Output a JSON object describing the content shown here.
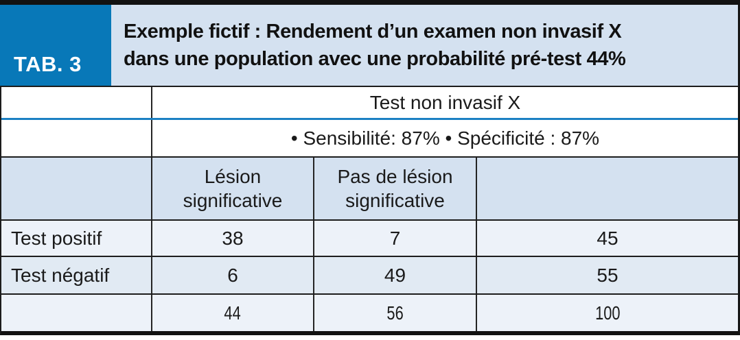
{
  "header": {
    "tab_label": "TAB. 3",
    "title_line1": "Exemple fictif : Rendement d’un examen non invasif X",
    "title_line2": "dans une population avec une probabilité pré-test 44%"
  },
  "table": {
    "span_header": "Test non invasif X",
    "metrics_line": "• Sensibilité: 87% • Spécificité : 87%",
    "columns": {
      "col1": "Lésion significative",
      "col2": "Pas de lésion significative",
      "col3": ""
    },
    "rows": [
      {
        "label": "Test positif",
        "v1": "38",
        "v2": "7",
        "v3": "45"
      },
      {
        "label": "Test négatif",
        "v1": "6",
        "v2": "49",
        "v3": "55"
      },
      {
        "label": "",
        "v1": "44",
        "v2": "56",
        "v3": "100"
      }
    ]
  },
  "colors": {
    "brand_blue": "#0878b8",
    "title_bg": "#d4e1f0",
    "header_row_bg": "#d4e1f0",
    "row_light": "#edf2f9",
    "row_shaded": "#e1eaf3",
    "divider_blue": "#1b80c3",
    "border_dark": "#1c1c1c"
  }
}
